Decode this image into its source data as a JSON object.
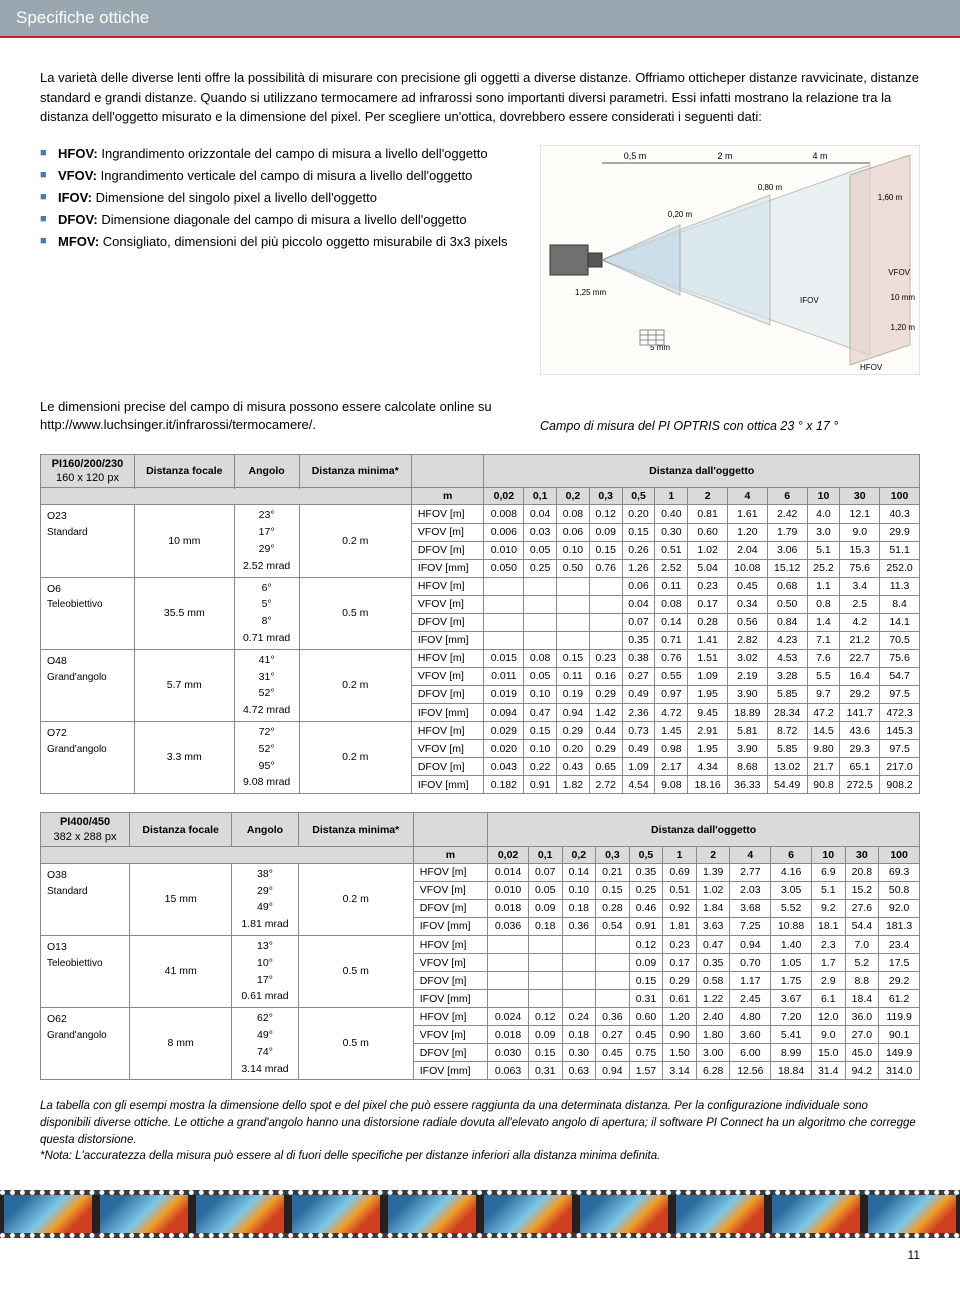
{
  "header": "Specifiche ottiche",
  "intro": "La varietà delle diverse lenti offre la possibilità di misurare con precisione gli oggetti a diverse distanze. Offriamo otticheper distanze ravvicinate, distanze standard e grandi distanze. Quando si utilizzano termocamere ad infrarossi sono importanti diversi parametri. Essi infatti mostrano la relazione tra la distanza dell'oggetto misurato e la dimensione del pixel. Per scegliere un'ottica, dovrebbero essere considerati i seguenti dati:",
  "bullets": [
    {
      "term": "HFOV:",
      "desc": " Ingrandimento orizzontale del campo di misura a livello dell'oggetto"
    },
    {
      "term": "VFOV:",
      "desc": " Ingrandimento verticale del campo di misura a livello dell'oggetto"
    },
    {
      "term": "IFOV:",
      "desc": " Dimensione del singolo pixel a livello dell'oggetto"
    },
    {
      "term": "DFOV:",
      "desc": " Dimensione diagonale del campo di misura a livello dell'oggetto"
    },
    {
      "term": "MFOV:",
      "desc": " Consigliato, dimensioni del più piccolo oggetto misurabile di 3x3 pixels"
    }
  ],
  "online_text": "Le dimensioni precise del campo di misura possono essere calcolate online su http://www.luchsinger.it/infrarossi/termocamere/.",
  "caption": "Campo di misura del PI OPTRIS con ottica 23 ° x 17 °",
  "diagram_labels": {
    "d05": "0,5 m",
    "d2": "2 m",
    "d4": "4 m",
    "w020": "0,20 m",
    "w080": "0,80 m",
    "w160": "1,60 m",
    "chip": "1,25 mm",
    "px": "5 mm",
    "ifov": "IFOV",
    "vfov": "VFOV",
    "hfov": "HFOV",
    "v120": "1,20 m",
    "v10": "10 mm"
  },
  "table_headers": {
    "distanza_focale": "Distanza focale",
    "angolo": "Angolo",
    "distanza_minima": "Distanza minima*",
    "distanza_oggetto": "Distanza dall'oggetto",
    "m": "m",
    "cols": [
      "0,02",
      "0,1",
      "0,2",
      "0,3",
      "0,5",
      "1",
      "2",
      "4",
      "6",
      "10",
      "30",
      "100"
    ]
  },
  "table1": {
    "title_top": "PI160/200/230",
    "title_sub": "160 x 120 px",
    "rows": [
      {
        "name": "O23",
        "sub": "Standard",
        "focal": "10 mm",
        "ang": [
          "23°",
          "17°",
          "29°",
          "2.52 mrad"
        ],
        "min": "0.2 m",
        "params": [
          "HFOV [m]",
          "VFOV [m]",
          "DFOV [m]",
          "IFOV [mm]"
        ],
        "vals": [
          [
            "0.008",
            "0.04",
            "0.08",
            "0.12",
            "0.20",
            "0.40",
            "0.81",
            "1.61",
            "2.42",
            "4.0",
            "12.1",
            "40.3"
          ],
          [
            "0.006",
            "0.03",
            "0.06",
            "0.09",
            "0.15",
            "0.30",
            "0.60",
            "1.20",
            "1.79",
            "3.0",
            "9.0",
            "29.9"
          ],
          [
            "0.010",
            "0.05",
            "0.10",
            "0.15",
            "0.26",
            "0.51",
            "1.02",
            "2.04",
            "3.06",
            "5.1",
            "15.3",
            "51.1"
          ],
          [
            "0.050",
            "0.25",
            "0.50",
            "0.76",
            "1.26",
            "2.52",
            "5.04",
            "10.08",
            "15.12",
            "25.2",
            "75.6",
            "252.0"
          ]
        ]
      },
      {
        "name": "O6",
        "sub": "Teleobiettivo",
        "focal": "35.5 mm",
        "ang": [
          "6°",
          "5°",
          "8°",
          "0.71 mrad"
        ],
        "min": "0.5 m",
        "params": [
          "HFOV [m]",
          "VFOV [m]",
          "DFOV [m]",
          "IFOV [mm]"
        ],
        "vals": [
          [
            "",
            "",
            "",
            "",
            "0.06",
            "0.11",
            "0.23",
            "0.45",
            "0.68",
            "1.1",
            "3.4",
            "11.3"
          ],
          [
            "",
            "",
            "",
            "",
            "0.04",
            "0.08",
            "0.17",
            "0.34",
            "0.50",
            "0.8",
            "2.5",
            "8.4"
          ],
          [
            "",
            "",
            "",
            "",
            "0.07",
            "0.14",
            "0.28",
            "0.56",
            "0.84",
            "1.4",
            "4.2",
            "14.1"
          ],
          [
            "",
            "",
            "",
            "",
            "0.35",
            "0.71",
            "1.41",
            "2.82",
            "4.23",
            "7.1",
            "21.2",
            "70.5"
          ]
        ]
      },
      {
        "name": "O48",
        "sub": "Grand'angolo",
        "focal": "5.7 mm",
        "ang": [
          "41°",
          "31°",
          "52°",
          "4.72 mrad"
        ],
        "min": "0.2 m",
        "params": [
          "HFOV [m]",
          "VFOV [m]",
          "DFOV [m]",
          "IFOV [mm]"
        ],
        "vals": [
          [
            "0.015",
            "0.08",
            "0.15",
            "0.23",
            "0.38",
            "0.76",
            "1.51",
            "3.02",
            "4.53",
            "7.6",
            "22.7",
            "75.6"
          ],
          [
            "0.011",
            "0.05",
            "0.11",
            "0.16",
            "0.27",
            "0.55",
            "1.09",
            "2.19",
            "3.28",
            "5.5",
            "16.4",
            "54.7"
          ],
          [
            "0.019",
            "0.10",
            "0.19",
            "0.29",
            "0.49",
            "0.97",
            "1.95",
            "3.90",
            "5.85",
            "9.7",
            "29.2",
            "97.5"
          ],
          [
            "0.094",
            "0.47",
            "0.94",
            "1.42",
            "2.36",
            "4.72",
            "9.45",
            "18.89",
            "28.34",
            "47.2",
            "141.7",
            "472.3"
          ]
        ]
      },
      {
        "name": "O72",
        "sub": "Grand'angolo",
        "focal": "3.3 mm",
        "ang": [
          "72°",
          "52°",
          "95°",
          "9.08 mrad"
        ],
        "min": "0.2 m",
        "params": [
          "HFOV [m]",
          "VFOV [m]",
          "DFOV [m]",
          "IFOV [mm]"
        ],
        "vals": [
          [
            "0.029",
            "0.15",
            "0.29",
            "0.44",
            "0.73",
            "1.45",
            "2.91",
            "5.81",
            "8.72",
            "14.5",
            "43.6",
            "145.3"
          ],
          [
            "0.020",
            "0.10",
            "0.20",
            "0.29",
            "0.49",
            "0.98",
            "1.95",
            "3.90",
            "5.85",
            "9.80",
            "29.3",
            "97.5"
          ],
          [
            "0.043",
            "0.22",
            "0.43",
            "0.65",
            "1.09",
            "2.17",
            "4.34",
            "8.68",
            "13.02",
            "21.7",
            "65.1",
            "217.0"
          ],
          [
            "0.182",
            "0.91",
            "1.82",
            "2.72",
            "4.54",
            "9.08",
            "18.16",
            "36.33",
            "54.49",
            "90.8",
            "272.5",
            "908.2"
          ]
        ]
      }
    ]
  },
  "table2": {
    "title_top": "PI400/450",
    "title_sub": "382 x 288 px",
    "rows": [
      {
        "name": "O38",
        "sub": "Standard",
        "focal": "15 mm",
        "ang": [
          "38°",
          "29°",
          "49°",
          "1.81 mrad"
        ],
        "min": "0.2 m",
        "params": [
          "HFOV [m]",
          "VFOV [m]",
          "DFOV [m]",
          "IFOV [mm]"
        ],
        "vals": [
          [
            "0.014",
            "0.07",
            "0.14",
            "0.21",
            "0.35",
            "0.69",
            "1.39",
            "2.77",
            "4.16",
            "6.9",
            "20.8",
            "69.3"
          ],
          [
            "0.010",
            "0.05",
            "0.10",
            "0.15",
            "0.25",
            "0.51",
            "1.02",
            "2.03",
            "3.05",
            "5.1",
            "15.2",
            "50.8"
          ],
          [
            "0.018",
            "0.09",
            "0.18",
            "0.28",
            "0.46",
            "0.92",
            "1.84",
            "3.68",
            "5.52",
            "9.2",
            "27.6",
            "92.0"
          ],
          [
            "0.036",
            "0.18",
            "0.36",
            "0.54",
            "0.91",
            "1.81",
            "3.63",
            "7.25",
            "10.88",
            "18.1",
            "54.4",
            "181.3"
          ]
        ]
      },
      {
        "name": "O13",
        "sub": "Teleobiettivo",
        "focal": "41 mm",
        "ang": [
          "13°",
          "10°",
          "17°",
          "0.61 mrad"
        ],
        "min": "0.5 m",
        "params": [
          "HFOV [m]",
          "VFOV [m]",
          "DFOV [m]",
          "IFOV [mm]"
        ],
        "vals": [
          [
            "",
            "",
            "",
            "",
            "0.12",
            "0.23",
            "0.47",
            "0.94",
            "1.40",
            "2.3",
            "7.0",
            "23.4"
          ],
          [
            "",
            "",
            "",
            "",
            "0.09",
            "0.17",
            "0.35",
            "0.70",
            "1.05",
            "1.7",
            "5.2",
            "17.5"
          ],
          [
            "",
            "",
            "",
            "",
            "0.15",
            "0.29",
            "0.58",
            "1.17",
            "1.75",
            "2.9",
            "8.8",
            "29.2"
          ],
          [
            "",
            "",
            "",
            "",
            "0.31",
            "0.61",
            "1.22",
            "2.45",
            "3.67",
            "6.1",
            "18.4",
            "61.2"
          ]
        ]
      },
      {
        "name": "O62",
        "sub": "Grand'angolo",
        "focal": "8 mm",
        "ang": [
          "62°",
          "49°",
          "74°",
          "3.14 mrad"
        ],
        "min": "0.5 m",
        "params": [
          "HFOV [m]",
          "VFOV [m]",
          "DFOV [m]",
          "IFOV [mm]"
        ],
        "vals": [
          [
            "0.024",
            "0.12",
            "0.24",
            "0.36",
            "0.60",
            "1.20",
            "2.40",
            "4.80",
            "7.20",
            "12.0",
            "36.0",
            "119.9"
          ],
          [
            "0.018",
            "0.09",
            "0.18",
            "0.27",
            "0.45",
            "0.90",
            "1.80",
            "3.60",
            "5.41",
            "9.0",
            "27.0",
            "90.1"
          ],
          [
            "0.030",
            "0.15",
            "0.30",
            "0.45",
            "0.75",
            "1.50",
            "3.00",
            "6.00",
            "8.99",
            "15.0",
            "45.0",
            "149.9"
          ],
          [
            "0.063",
            "0.31",
            "0.63",
            "0.94",
            "1.57",
            "3.14",
            "6.28",
            "12.56",
            "18.84",
            "31.4",
            "94.2",
            "314.0"
          ]
        ]
      }
    ]
  },
  "footnote": "La tabella con gli esempi mostra la dimensione dello spot e del pixel che può essere raggiunta da una determinata distanza. Per la configurazione individuale sono disponibili diverse ottiche. Le ottiche a grand'angolo hanno una distorsione radiale dovuta all'elevato angolo di apertura; il software PI Connect ha un algoritmo che corregge questa distorsione.\n*Nota: L'accuratezza della misura può essere al di fuori delle specifiche per distanze inferiori alla distanza minima definita.",
  "page_num": "11"
}
